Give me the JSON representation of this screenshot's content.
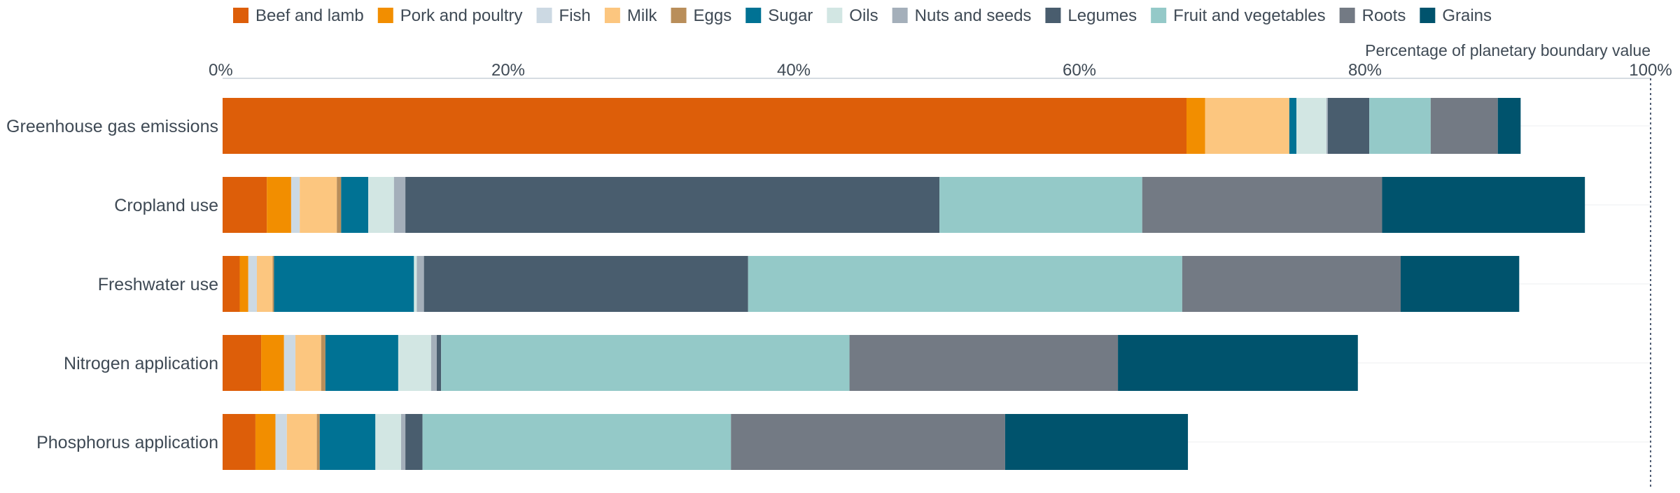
{
  "chart_data": {
    "type": "bar",
    "orientation": "horizontal",
    "stacked": true,
    "axis_title": "Percentage of planetary boundary value",
    "xlim": [
      0,
      100
    ],
    "x_ticks": [
      "0%",
      "20%",
      "40%",
      "60%",
      "80%",
      "100%"
    ],
    "reference_line": 100,
    "legend_position": "top",
    "categories": [
      "Greenhouse gas emissions",
      "Cropland use",
      "Freshwater use",
      "Nitrogen application",
      "Phosphorus application"
    ],
    "series": [
      {
        "name": "Beef and lamb",
        "color": "#dd5e09",
        "values": [
          67.5,
          3.1,
          1.2,
          2.7,
          2.3
        ]
      },
      {
        "name": "Pork and poultry",
        "color": "#f28e00",
        "values": [
          1.3,
          1.7,
          0.6,
          1.6,
          1.4
        ]
      },
      {
        "name": "Fish",
        "color": "#ccd9e3",
        "values": [
          0,
          0.6,
          0.6,
          0.8,
          0.8
        ]
      },
      {
        "name": "Milk",
        "color": "#fcc67f",
        "values": [
          5.9,
          2.6,
          1.1,
          1.8,
          2.1
        ]
      },
      {
        "name": "Eggs",
        "color": "#b98e5a",
        "values": [
          0,
          0.3,
          0.1,
          0.3,
          0.2
        ]
      },
      {
        "name": "Sugar",
        "color": "#007294",
        "values": [
          0.5,
          1.9,
          9.8,
          5.1,
          3.9
        ]
      },
      {
        "name": "Oils",
        "color": "#d2e6e3",
        "values": [
          2.1,
          1.8,
          0.2,
          2.3,
          1.8
        ]
      },
      {
        "name": "Nuts and seeds",
        "color": "#a4afba",
        "values": [
          0.1,
          0.8,
          0.5,
          0.4,
          0.3
        ]
      },
      {
        "name": "Legumes",
        "color": "#495d6e",
        "values": [
          2.9,
          37.4,
          22.7,
          0.3,
          1.2
        ]
      },
      {
        "name": "Fruit and vegetables",
        "color": "#94c9c8",
        "values": [
          4.3,
          14.2,
          30.4,
          28.6,
          21.6
        ]
      },
      {
        "name": "Roots",
        "color": "#737a84",
        "values": [
          4.7,
          16.8,
          15.3,
          18.8,
          19.2
        ]
      },
      {
        "name": "Grains",
        "color": "#00536d",
        "values": [
          1.6,
          14.2,
          8.3,
          16.8,
          12.8
        ]
      }
    ]
  }
}
